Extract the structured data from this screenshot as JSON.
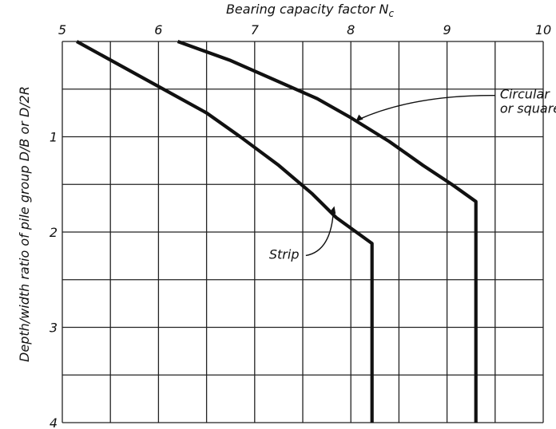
{
  "chart_data": {
    "type": "line",
    "xlabel": "Bearing capacity factor",
    "xlabel_symbol": "N",
    "xlabel_subscript": "c",
    "xlabel_position": "top",
    "ylabel": "Depth/width ratio of pile group D/B or D/2R",
    "xlim": [
      5,
      10
    ],
    "ylim": [
      0,
      4
    ],
    "y_inverted": true,
    "x_ticks": [
      "5",
      "6",
      "7",
      "8",
      "9",
      "10"
    ],
    "y_ticks": [
      "1",
      "2",
      "3",
      "4"
    ],
    "x_grid_step": 0.5,
    "y_grid_step": 0.5,
    "grid": true,
    "series": [
      {
        "name": "Strip",
        "points": [
          {
            "x": 5.15,
            "y": 0.0
          },
          {
            "x": 5.6,
            "y": 0.25
          },
          {
            "x": 6.05,
            "y": 0.5
          },
          {
            "x": 6.5,
            "y": 0.75
          },
          {
            "x": 6.85,
            "y": 1.0
          },
          {
            "x": 7.25,
            "y": 1.3
          },
          {
            "x": 7.6,
            "y": 1.6
          },
          {
            "x": 7.85,
            "y": 1.85
          },
          {
            "x": 8.22,
            "y": 2.12
          },
          {
            "x": 8.22,
            "y": 4.0
          }
        ]
      },
      {
        "name": "Circular or square",
        "points": [
          {
            "x": 6.2,
            "y": 0.0
          },
          {
            "x": 6.75,
            "y": 0.2
          },
          {
            "x": 7.2,
            "y": 0.4
          },
          {
            "x": 7.65,
            "y": 0.6
          },
          {
            "x": 8.0,
            "y": 0.8
          },
          {
            "x": 8.4,
            "y": 1.05
          },
          {
            "x": 8.75,
            "y": 1.3
          },
          {
            "x": 9.05,
            "y": 1.5
          },
          {
            "x": 9.3,
            "y": 1.68
          },
          {
            "x": 9.3,
            "y": 4.0
          }
        ]
      }
    ],
    "annotations": [
      {
        "label_lines": [
          "Circular",
          "or square"
        ],
        "target_series": "Circular or square"
      },
      {
        "label_lines": [
          "Strip"
        ],
        "target_series": "Strip"
      }
    ]
  }
}
